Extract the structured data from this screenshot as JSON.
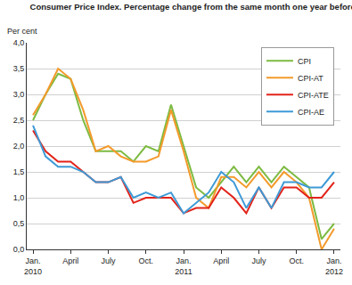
{
  "chart_data": {
    "type": "line",
    "title": "Consumer Price Index. Percentage change from the same month one year before",
    "y_label": "Per cent",
    "categories": [
      "Jan.\n2010",
      null,
      null,
      "April",
      null,
      null,
      "July",
      null,
      null,
      "Oct.",
      null,
      null,
      "Jan.\n2011",
      null,
      null,
      "April",
      null,
      null,
      "July",
      null,
      null,
      "Oct.",
      null,
      null,
      "Jan.\n2012"
    ],
    "series": [
      {
        "name": "CPI",
        "color": "#7dbb42",
        "values": [
          2.5,
          3.0,
          3.4,
          3.3,
          2.5,
          1.9,
          1.9,
          1.9,
          1.7,
          2.0,
          1.9,
          2.8,
          2.0,
          1.2,
          1.0,
          1.3,
          1.6,
          1.3,
          1.6,
          1.3,
          1.6,
          1.4,
          1.2,
          0.2,
          0.5
        ]
      },
      {
        "name": "CPI-AT",
        "color": "#f39a2b",
        "values": [
          2.6,
          3.0,
          3.5,
          3.3,
          2.7,
          1.9,
          2.0,
          1.8,
          1.7,
          1.7,
          1.8,
          2.7,
          1.9,
          1.0,
          0.8,
          1.4,
          1.4,
          1.2,
          1.5,
          1.2,
          1.5,
          1.3,
          1.0,
          0.0,
          0.4
        ]
      },
      {
        "name": "CPI-ATE",
        "color": "#e2231a",
        "values": [
          2.3,
          1.9,
          1.7,
          1.7,
          1.5,
          1.3,
          1.3,
          1.4,
          0.9,
          1.0,
          1.0,
          1.0,
          0.7,
          0.8,
          0.8,
          1.2,
          1.0,
          0.7,
          1.2,
          0.8,
          1.2,
          1.2,
          1.0,
          1.0,
          1.3
        ]
      },
      {
        "name": "CPI-AE",
        "color": "#3e9ad6",
        "values": [
          2.4,
          1.8,
          1.6,
          1.6,
          1.5,
          1.3,
          1.3,
          1.4,
          1.0,
          1.1,
          1.0,
          1.1,
          0.7,
          0.9,
          1.1,
          1.5,
          1.3,
          0.8,
          1.2,
          0.8,
          1.3,
          1.3,
          1.2,
          1.2,
          1.5
        ]
      }
    ],
    "ylim": [
      0,
      4
    ],
    "yticks": [
      {
        "value": 0,
        "label": "0,0"
      },
      {
        "value": 0.5,
        "label": "0,5"
      },
      {
        "value": 1,
        "label": "1,0"
      },
      {
        "value": 1.5,
        "label": "1,5"
      },
      {
        "value": 2,
        "label": "2,0"
      },
      {
        "value": 2.5,
        "label": "2,5"
      },
      {
        "value": 3,
        "label": "3,0"
      },
      {
        "value": 3.5,
        "label": "3,5"
      },
      {
        "value": 4,
        "label": "4,0"
      }
    ],
    "grid": true,
    "legend": "top-right"
  }
}
